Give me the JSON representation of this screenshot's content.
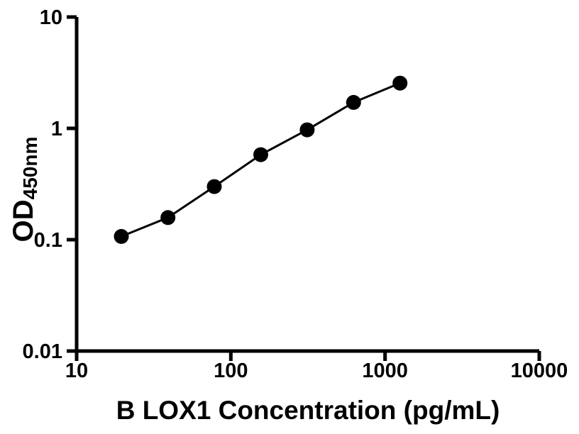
{
  "figure": {
    "background_color": "#ffffff",
    "ink_color": "#000000"
  },
  "chart_data": {
    "type": "scatter",
    "title": "",
    "xlabel": "B LOX1 Concentration (pg/mL)",
    "ylabel": {
      "main": "OD",
      "subscript": "450nm"
    },
    "xscale": "log",
    "yscale": "log",
    "xlim": [
      10,
      10000
    ],
    "ylim": [
      0.01,
      10
    ],
    "x_ticks": [
      10,
      100,
      1000,
      10000
    ],
    "x_tick_labels": [
      "10",
      "100",
      "1000",
      "10000"
    ],
    "y_ticks": [
      10,
      1,
      0.1,
      0.01
    ],
    "y_tick_labels": [
      "10",
      "1",
      "0.1",
      "0.01"
    ],
    "grid": false,
    "legend": "none",
    "marker_shape": "filled-circle",
    "marker_color": "#000000",
    "line_color": "#000000",
    "series": [
      {
        "x": [
          19.5,
          39.1,
          78.1,
          156.3,
          312.5,
          625,
          1250
        ],
        "y": [
          0.107,
          0.158,
          0.3,
          0.58,
          0.97,
          1.71,
          2.55
        ]
      }
    ]
  }
}
